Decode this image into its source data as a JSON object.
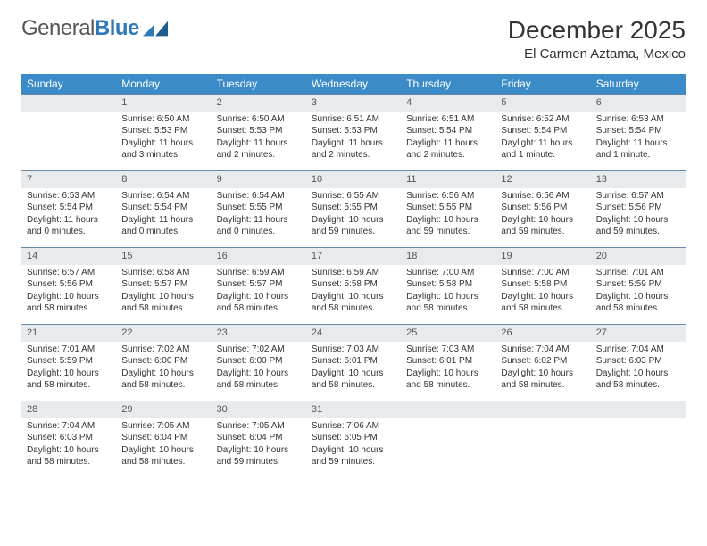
{
  "brand": {
    "name_part1": "General",
    "name_part2": "Blue"
  },
  "title": "December 2025",
  "location": "El Carmen Aztama, Mexico",
  "colors": {
    "header_bg": "#3b8bc9",
    "daynum_bg": "#e8ebed",
    "rule": "#6a8aa8",
    "text": "#333333",
    "brand_gray": "#555555",
    "brand_blue": "#2e79b8",
    "page_bg": "#ffffff"
  },
  "typography": {
    "month_title_fontsize": 28,
    "location_fontsize": 15,
    "weekday_fontsize": 12,
    "daynum_fontsize": 11,
    "cell_fontsize": 10
  },
  "weekdays": [
    "Sunday",
    "Monday",
    "Tuesday",
    "Wednesday",
    "Thursday",
    "Friday",
    "Saturday"
  ],
  "calendar": {
    "type": "table",
    "columns": 7,
    "rows": 5,
    "first_weekday_index": 1,
    "days": [
      {
        "n": 1,
        "sunrise": "6:50 AM",
        "sunset": "5:53 PM",
        "daylight": "11 hours and 3 minutes."
      },
      {
        "n": 2,
        "sunrise": "6:50 AM",
        "sunset": "5:53 PM",
        "daylight": "11 hours and 2 minutes."
      },
      {
        "n": 3,
        "sunrise": "6:51 AM",
        "sunset": "5:53 PM",
        "daylight": "11 hours and 2 minutes."
      },
      {
        "n": 4,
        "sunrise": "6:51 AM",
        "sunset": "5:54 PM",
        "daylight": "11 hours and 2 minutes."
      },
      {
        "n": 5,
        "sunrise": "6:52 AM",
        "sunset": "5:54 PM",
        "daylight": "11 hours and 1 minute."
      },
      {
        "n": 6,
        "sunrise": "6:53 AM",
        "sunset": "5:54 PM",
        "daylight": "11 hours and 1 minute."
      },
      {
        "n": 7,
        "sunrise": "6:53 AM",
        "sunset": "5:54 PM",
        "daylight": "11 hours and 0 minutes."
      },
      {
        "n": 8,
        "sunrise": "6:54 AM",
        "sunset": "5:54 PM",
        "daylight": "11 hours and 0 minutes."
      },
      {
        "n": 9,
        "sunrise": "6:54 AM",
        "sunset": "5:55 PM",
        "daylight": "11 hours and 0 minutes."
      },
      {
        "n": 10,
        "sunrise": "6:55 AM",
        "sunset": "5:55 PM",
        "daylight": "10 hours and 59 minutes."
      },
      {
        "n": 11,
        "sunrise": "6:56 AM",
        "sunset": "5:55 PM",
        "daylight": "10 hours and 59 minutes."
      },
      {
        "n": 12,
        "sunrise": "6:56 AM",
        "sunset": "5:56 PM",
        "daylight": "10 hours and 59 minutes."
      },
      {
        "n": 13,
        "sunrise": "6:57 AM",
        "sunset": "5:56 PM",
        "daylight": "10 hours and 59 minutes."
      },
      {
        "n": 14,
        "sunrise": "6:57 AM",
        "sunset": "5:56 PM",
        "daylight": "10 hours and 58 minutes."
      },
      {
        "n": 15,
        "sunrise": "6:58 AM",
        "sunset": "5:57 PM",
        "daylight": "10 hours and 58 minutes."
      },
      {
        "n": 16,
        "sunrise": "6:59 AM",
        "sunset": "5:57 PM",
        "daylight": "10 hours and 58 minutes."
      },
      {
        "n": 17,
        "sunrise": "6:59 AM",
        "sunset": "5:58 PM",
        "daylight": "10 hours and 58 minutes."
      },
      {
        "n": 18,
        "sunrise": "7:00 AM",
        "sunset": "5:58 PM",
        "daylight": "10 hours and 58 minutes."
      },
      {
        "n": 19,
        "sunrise": "7:00 AM",
        "sunset": "5:58 PM",
        "daylight": "10 hours and 58 minutes."
      },
      {
        "n": 20,
        "sunrise": "7:01 AM",
        "sunset": "5:59 PM",
        "daylight": "10 hours and 58 minutes."
      },
      {
        "n": 21,
        "sunrise": "7:01 AM",
        "sunset": "5:59 PM",
        "daylight": "10 hours and 58 minutes."
      },
      {
        "n": 22,
        "sunrise": "7:02 AM",
        "sunset": "6:00 PM",
        "daylight": "10 hours and 58 minutes."
      },
      {
        "n": 23,
        "sunrise": "7:02 AM",
        "sunset": "6:00 PM",
        "daylight": "10 hours and 58 minutes."
      },
      {
        "n": 24,
        "sunrise": "7:03 AM",
        "sunset": "6:01 PM",
        "daylight": "10 hours and 58 minutes."
      },
      {
        "n": 25,
        "sunrise": "7:03 AM",
        "sunset": "6:01 PM",
        "daylight": "10 hours and 58 minutes."
      },
      {
        "n": 26,
        "sunrise": "7:04 AM",
        "sunset": "6:02 PM",
        "daylight": "10 hours and 58 minutes."
      },
      {
        "n": 27,
        "sunrise": "7:04 AM",
        "sunset": "6:03 PM",
        "daylight": "10 hours and 58 minutes."
      },
      {
        "n": 28,
        "sunrise": "7:04 AM",
        "sunset": "6:03 PM",
        "daylight": "10 hours and 58 minutes."
      },
      {
        "n": 29,
        "sunrise": "7:05 AM",
        "sunset": "6:04 PM",
        "daylight": "10 hours and 58 minutes."
      },
      {
        "n": 30,
        "sunrise": "7:05 AM",
        "sunset": "6:04 PM",
        "daylight": "10 hours and 59 minutes."
      },
      {
        "n": 31,
        "sunrise": "7:06 AM",
        "sunset": "6:05 PM",
        "daylight": "10 hours and 59 minutes."
      }
    ]
  },
  "labels": {
    "sunrise": "Sunrise:",
    "sunset": "Sunset:",
    "daylight": "Daylight:"
  }
}
